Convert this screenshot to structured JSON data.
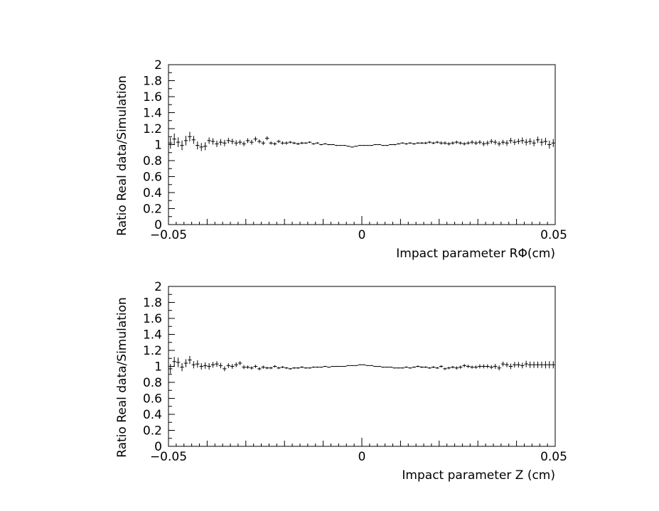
{
  "chart_data": [
    {
      "type": "scatter",
      "xlabel": "Impact parameter RΦ(cm)",
      "ylabel": "Ratio Real data/Simulation",
      "xlim": [
        -0.05,
        0.05
      ],
      "ylim": [
        0,
        2
      ],
      "x_tick_labels": [
        "−0.05",
        "0",
        "0.05"
      ],
      "y_tick_labels": [
        "0",
        "0.2",
        "0.4",
        "0.6",
        "0.8",
        "1",
        "1.2",
        "1.4",
        "1.6",
        "1.8",
        "2"
      ],
      "grid": false,
      "error_bars": true,
      "bin_width": 0.001,
      "series": [
        {
          "x": [
            -0.0495,
            -0.0485,
            -0.0475,
            -0.0465,
            -0.0455,
            -0.0445,
            -0.0435,
            -0.0425,
            -0.0415,
            -0.0405,
            -0.0395,
            -0.0385,
            -0.0375,
            -0.0365,
            -0.0355,
            -0.0345,
            -0.0335,
            -0.0325,
            -0.0315,
            -0.0305,
            -0.0295,
            -0.0285,
            -0.0275,
            -0.0265,
            -0.0255,
            -0.0245,
            -0.0235,
            -0.0225,
            -0.0215,
            -0.0205,
            -0.0195,
            -0.0185,
            -0.0175,
            -0.0165,
            -0.0155,
            -0.0145,
            -0.0135,
            -0.0125,
            -0.0115,
            -0.0105,
            -0.0095,
            -0.0085,
            -0.0075,
            -0.0065,
            -0.0055,
            -0.0045,
            -0.0035,
            -0.0025,
            -0.0015,
            -0.0005,
            0.0005,
            0.0015,
            0.0025,
            0.0035,
            0.0045,
            0.0055,
            0.0065,
            0.0075,
            0.0085,
            0.0095,
            0.0105,
            0.0115,
            0.0125,
            0.0135,
            0.0145,
            0.0155,
            0.0165,
            0.0175,
            0.0185,
            0.0195,
            0.0205,
            0.0215,
            0.0225,
            0.0235,
            0.0245,
            0.0255,
            0.0265,
            0.0275,
            0.0285,
            0.0295,
            0.0305,
            0.0315,
            0.0325,
            0.0335,
            0.0345,
            0.0355,
            0.0365,
            0.0375,
            0.0385,
            0.0395,
            0.0405,
            0.0415,
            0.0425,
            0.0435,
            0.0445,
            0.0455,
            0.0465,
            0.0475,
            0.0485,
            0.0495
          ],
          "y": [
            1.02,
            1.07,
            1.03,
            0.99,
            1.05,
            1.1,
            1.06,
            0.99,
            0.97,
            0.98,
            1.05,
            1.04,
            1.01,
            1.03,
            1.02,
            1.05,
            1.04,
            1.02,
            1.03,
            1.01,
            1.05,
            1.03,
            1.07,
            1.04,
            1.02,
            1.08,
            1.02,
            1.01,
            1.04,
            1.02,
            1.02,
            1.03,
            1.02,
            1.01,
            1.02,
            1.02,
            1.03,
            1.01,
            1.02,
            1.0,
            1.01,
            1.0,
            1.0,
            0.99,
            0.99,
            0.99,
            0.98,
            0.97,
            0.98,
            0.99,
            0.99,
            0.99,
            0.99,
            1.0,
            1.0,
            0.99,
            0.99,
            1.0,
            1.0,
            1.01,
            1.02,
            1.01,
            1.02,
            1.01,
            1.02,
            1.02,
            1.02,
            1.03,
            1.02,
            1.03,
            1.02,
            1.02,
            1.01,
            1.02,
            1.03,
            1.02,
            1.01,
            1.02,
            1.03,
            1.02,
            1.03,
            1.01,
            1.02,
            1.04,
            1.03,
            1.01,
            1.03,
            1.02,
            1.05,
            1.03,
            1.04,
            1.05,
            1.03,
            1.04,
            1.02,
            1.06,
            1.03,
            1.04,
            1.0,
            1.02
          ],
          "yerr": [
            0.07,
            0.07,
            0.06,
            0.06,
            0.06,
            0.06,
            0.05,
            0.05,
            0.05,
            0.05,
            0.04,
            0.04,
            0.04,
            0.04,
            0.04,
            0.035,
            0.035,
            0.035,
            0.03,
            0.03,
            0.03,
            0.03,
            0.03,
            0.025,
            0.025,
            0.025,
            0.02,
            0.02,
            0.02,
            0.02,
            0.02,
            0.015,
            0.015,
            0.015,
            0.015,
            0.01,
            0.01,
            0.01,
            0.01,
            0.008,
            0.008,
            0.007,
            0.006,
            0.006,
            0.005,
            0.005,
            0.005,
            0.005,
            0.004,
            0.004,
            0.004,
            0.004,
            0.005,
            0.005,
            0.005,
            0.005,
            0.006,
            0.006,
            0.007,
            0.008,
            0.008,
            0.01,
            0.01,
            0.01,
            0.01,
            0.012,
            0.015,
            0.015,
            0.015,
            0.015,
            0.02,
            0.02,
            0.02,
            0.02,
            0.02,
            0.02,
            0.02,
            0.02,
            0.025,
            0.025,
            0.025,
            0.03,
            0.03,
            0.03,
            0.03,
            0.03,
            0.03,
            0.035,
            0.035,
            0.035,
            0.035,
            0.04,
            0.04,
            0.04,
            0.04,
            0.04,
            0.045,
            0.045,
            0.05,
            0.05
          ]
        }
      ]
    },
    {
      "type": "scatter",
      "xlabel": "Impact parameter Z (cm)",
      "ylabel": "Ratio Real data/Simulation",
      "xlim": [
        -0.05,
        0.05
      ],
      "ylim": [
        0,
        2
      ],
      "x_tick_labels": [
        "−0.05",
        "0",
        "0.05"
      ],
      "y_tick_labels": [
        "0",
        "0.2",
        "0.4",
        "0.6",
        "0.8",
        "1",
        "1.2",
        "1.4",
        "1.6",
        "1.8",
        "2"
      ],
      "grid": false,
      "error_bars": true,
      "bin_width": 0.001,
      "series": [
        {
          "x": [
            -0.0495,
            -0.0485,
            -0.0475,
            -0.0465,
            -0.0455,
            -0.0445,
            -0.0435,
            -0.0425,
            -0.0415,
            -0.0405,
            -0.0395,
            -0.0385,
            -0.0375,
            -0.0365,
            -0.0355,
            -0.0345,
            -0.0335,
            -0.0325,
            -0.0315,
            -0.0305,
            -0.0295,
            -0.0285,
            -0.0275,
            -0.0265,
            -0.0255,
            -0.0245,
            -0.0235,
            -0.0225,
            -0.0215,
            -0.0205,
            -0.0195,
            -0.0185,
            -0.0175,
            -0.0165,
            -0.0155,
            -0.0145,
            -0.0135,
            -0.0125,
            -0.0115,
            -0.0105,
            -0.0095,
            -0.0085,
            -0.0075,
            -0.0065,
            -0.0055,
            -0.0045,
            -0.0035,
            -0.0025,
            -0.0015,
            -0.0005,
            0.0005,
            0.0015,
            0.0025,
            0.0035,
            0.0045,
            0.0055,
            0.0065,
            0.0075,
            0.0085,
            0.0095,
            0.0105,
            0.0115,
            0.0125,
            0.0135,
            0.0145,
            0.0155,
            0.0165,
            0.0175,
            0.0185,
            0.0195,
            0.0205,
            0.0215,
            0.0225,
            0.0235,
            0.0245,
            0.0255,
            0.0265,
            0.0275,
            0.0285,
            0.0295,
            0.0305,
            0.0315,
            0.0325,
            0.0335,
            0.0345,
            0.0355,
            0.0365,
            0.0375,
            0.0385,
            0.0395,
            0.0405,
            0.0415,
            0.0425,
            0.0435,
            0.0445,
            0.0455,
            0.0465,
            0.0475,
            0.0485,
            0.0495
          ],
          "y": [
            0.97,
            1.06,
            1.05,
            0.99,
            1.04,
            1.08,
            1.02,
            1.03,
            1.0,
            1.01,
            1.0,
            1.02,
            1.03,
            1.01,
            0.97,
            1.01,
            1.0,
            1.02,
            1.04,
            0.99,
            0.99,
            0.98,
            1.0,
            0.97,
            0.99,
            0.98,
            0.98,
            1.0,
            0.98,
            0.99,
            0.98,
            0.97,
            0.98,
            0.98,
            0.99,
            0.98,
            0.98,
            0.99,
            0.99,
            0.99,
            1.0,
            0.99,
            1.0,
            1.0,
            1.0,
            1.0,
            1.01,
            1.01,
            1.01,
            1.02,
            1.02,
            1.01,
            1.01,
            1.0,
            1.0,
            0.99,
            0.99,
            0.99,
            0.98,
            0.98,
            0.98,
            0.99,
            0.98,
            0.99,
            1.0,
            0.99,
            0.99,
            0.98,
            0.99,
            0.98,
            1.0,
            0.97,
            0.98,
            0.99,
            0.98,
            0.99,
            1.01,
            1.0,
            0.99,
            0.99,
            1.0,
            1.0,
            1.0,
            0.99,
            1.0,
            0.98,
            1.03,
            1.02,
            1.0,
            1.02,
            1.02,
            1.01,
            1.03,
            1.02,
            1.02,
            1.02,
            1.02,
            1.02,
            1.02,
            1.02
          ],
          "yerr": [
            0.06,
            0.06,
            0.06,
            0.05,
            0.05,
            0.05,
            0.045,
            0.045,
            0.04,
            0.04,
            0.04,
            0.035,
            0.035,
            0.035,
            0.03,
            0.03,
            0.03,
            0.03,
            0.025,
            0.025,
            0.02,
            0.02,
            0.02,
            0.02,
            0.02,
            0.015,
            0.015,
            0.015,
            0.015,
            0.012,
            0.012,
            0.01,
            0.01,
            0.01,
            0.01,
            0.008,
            0.008,
            0.008,
            0.007,
            0.006,
            0.006,
            0.005,
            0.005,
            0.005,
            0.004,
            0.004,
            0.004,
            0.004,
            0.004,
            0.004,
            0.004,
            0.004,
            0.004,
            0.004,
            0.004,
            0.005,
            0.005,
            0.005,
            0.006,
            0.006,
            0.007,
            0.008,
            0.008,
            0.008,
            0.01,
            0.01,
            0.01,
            0.01,
            0.012,
            0.012,
            0.015,
            0.015,
            0.015,
            0.015,
            0.02,
            0.02,
            0.02,
            0.02,
            0.02,
            0.02,
            0.025,
            0.025,
            0.025,
            0.025,
            0.03,
            0.03,
            0.03,
            0.03,
            0.035,
            0.035,
            0.035,
            0.035,
            0.04,
            0.04,
            0.04,
            0.04,
            0.04,
            0.045,
            0.045,
            0.045
          ]
        }
      ]
    }
  ]
}
